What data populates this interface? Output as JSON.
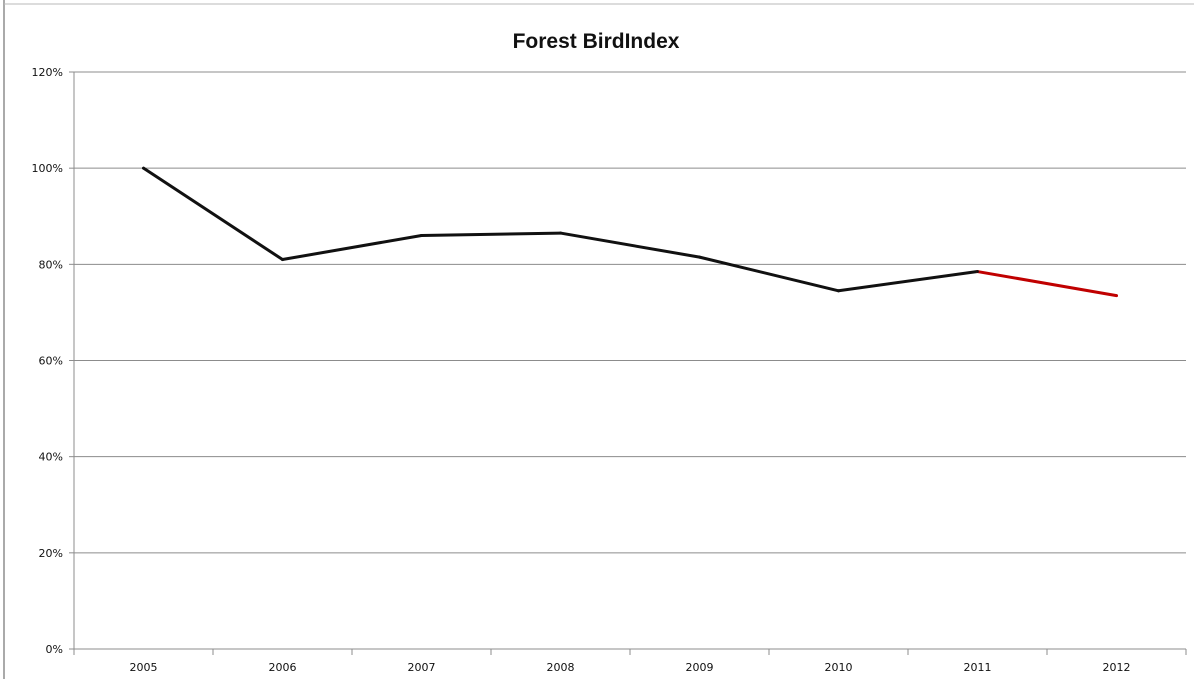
{
  "chart_data": {
    "type": "line",
    "title": "Forest BirdIndex",
    "xlabel": "",
    "ylabel": "",
    "categories": [
      "2005",
      "2006",
      "2007",
      "2008",
      "2009",
      "2010",
      "2011",
      "2012"
    ],
    "series": [
      {
        "values": [
          100,
          81,
          86,
          86.5,
          81.5,
          74.5,
          78.5,
          73.5
        ],
        "color": "#111111",
        "segment_colors": [
          "#111111",
          "#111111",
          "#111111",
          "#111111",
          "#111111",
          "#111111",
          "#c00000"
        ]
      }
    ],
    "ylim": [
      0,
      120
    ],
    "yticks": [
      0,
      20,
      40,
      60,
      80,
      100,
      120
    ],
    "ytick_labels": [
      "0%",
      "20%",
      "40%",
      "60%",
      "80%",
      "100%",
      "120%"
    ],
    "grid": true,
    "legend": "none"
  },
  "colors": {
    "background": "#ffffff",
    "gridline": "#8c8c8c",
    "axis": "#8c8c8c",
    "frame": "#8e8e8e",
    "primary_line": "#111111",
    "highlight_line": "#c00000"
  }
}
